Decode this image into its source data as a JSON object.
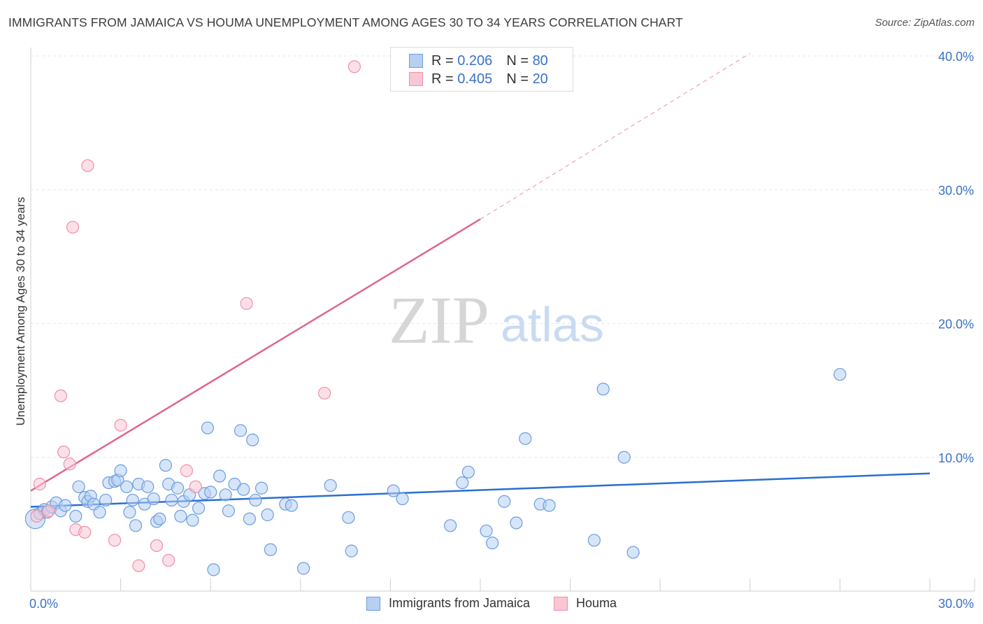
{
  "title": "IMMIGRANTS FROM JAMAICA VS HOUMA UNEMPLOYMENT AMONG AGES 30 TO 34 YEARS CORRELATION CHART",
  "source": "Source: ZipAtlas.com",
  "watermark": {
    "zip": "ZIP",
    "atlas": "atlas"
  },
  "colors": {
    "blue_fill": "#b7d0f2",
    "blue_stroke": "#6b9de0",
    "blue_line": "#2a6fd0",
    "pink_fill": "#f9c6d4",
    "pink_stroke": "#ee8faa",
    "pink_line": "#e0658e",
    "axis_text": "#3a72c4",
    "grid": "#e6e6e6"
  },
  "legend": [
    {
      "r_label": "R =",
      "r_value": "0.206",
      "n_label": "N =",
      "n_value": "80"
    },
    {
      "r_label": "R =",
      "r_value": "0.405",
      "n_label": "N =",
      "n_value": "20"
    }
  ],
  "chart_data": {
    "type": "scatter",
    "xlabel": "",
    "ylabel": "Unemployment Among Ages 30 to 34 years",
    "xlim": [
      0,
      30
    ],
    "ylim": [
      0,
      40
    ],
    "x_tick_labels": [
      "0.0%",
      "30.0%"
    ],
    "y_tick_labels": [
      "10.0%",
      "20.0%",
      "30.0%",
      "40.0%"
    ],
    "y_ticks": [
      10,
      20,
      30,
      40
    ],
    "legend_position": "top-center",
    "series": [
      {
        "name": "Immigrants from Jamaica",
        "r": 0.206,
        "n": 80,
        "trend": {
          "x": [
            0,
            30
          ],
          "y": [
            6.3,
            8.8
          ],
          "dashed_extension": false
        },
        "points": [
          [
            0.15,
            5.4
          ],
          [
            0.3,
            5.8
          ],
          [
            0.45,
            6.1
          ],
          [
            0.55,
            5.9
          ],
          [
            0.7,
            6.3
          ],
          [
            0.85,
            6.6
          ],
          [
            1.0,
            6.0
          ],
          [
            1.15,
            6.4
          ],
          [
            1.5,
            5.6
          ],
          [
            1.6,
            7.8
          ],
          [
            1.8,
            7.0
          ],
          [
            1.9,
            6.7
          ],
          [
            2.0,
            7.1
          ],
          [
            2.1,
            6.5
          ],
          [
            2.3,
            5.9
          ],
          [
            2.5,
            6.8
          ],
          [
            2.6,
            8.1
          ],
          [
            2.8,
            8.2
          ],
          [
            2.9,
            8.3
          ],
          [
            3.0,
            9.0
          ],
          [
            3.2,
            7.8
          ],
          [
            3.3,
            5.9
          ],
          [
            3.4,
            6.8
          ],
          [
            3.5,
            4.9
          ],
          [
            3.6,
            8.0
          ],
          [
            3.8,
            6.5
          ],
          [
            3.9,
            7.8
          ],
          [
            4.1,
            6.9
          ],
          [
            4.2,
            5.2
          ],
          [
            4.3,
            5.4
          ],
          [
            4.5,
            9.4
          ],
          [
            4.6,
            8.0
          ],
          [
            4.7,
            6.8
          ],
          [
            4.9,
            7.7
          ],
          [
            5.0,
            5.6
          ],
          [
            5.1,
            6.7
          ],
          [
            5.3,
            7.2
          ],
          [
            5.4,
            5.3
          ],
          [
            5.6,
            6.2
          ],
          [
            5.8,
            7.3
          ],
          [
            5.9,
            12.2
          ],
          [
            6.0,
            7.4
          ],
          [
            6.1,
            1.6
          ],
          [
            6.3,
            8.6
          ],
          [
            6.5,
            7.2
          ],
          [
            6.6,
            6.0
          ],
          [
            6.8,
            8.0
          ],
          [
            7.0,
            12.0
          ],
          [
            7.1,
            7.6
          ],
          [
            7.3,
            5.4
          ],
          [
            7.4,
            11.3
          ],
          [
            7.5,
            6.8
          ],
          [
            7.7,
            7.7
          ],
          [
            7.9,
            5.7
          ],
          [
            8.0,
            3.1
          ],
          [
            8.5,
            6.5
          ],
          [
            8.7,
            6.4
          ],
          [
            9.1,
            1.7
          ],
          [
            10.0,
            7.9
          ],
          [
            10.6,
            5.5
          ],
          [
            10.7,
            3.0
          ],
          [
            12.1,
            7.5
          ],
          [
            12.4,
            6.9
          ],
          [
            14.0,
            4.9
          ],
          [
            14.4,
            8.1
          ],
          [
            14.6,
            8.9
          ],
          [
            15.2,
            4.5
          ],
          [
            15.4,
            3.6
          ],
          [
            15.8,
            6.7
          ],
          [
            16.2,
            5.1
          ],
          [
            16.5,
            11.4
          ],
          [
            17.0,
            6.5
          ],
          [
            17.3,
            6.4
          ],
          [
            18.8,
            3.8
          ],
          [
            19.1,
            15.1
          ],
          [
            19.8,
            10.0
          ],
          [
            20.1,
            2.9
          ],
          [
            27.0,
            16.2
          ]
        ]
      },
      {
        "name": "Houma",
        "r": 0.405,
        "n": 20,
        "trend": {
          "x": [
            0,
            15
          ],
          "y": [
            7.5,
            27.8
          ],
          "dashed_to": [
            24.0,
            40.2
          ]
        },
        "points": [
          [
            0.2,
            5.6
          ],
          [
            0.3,
            8.0
          ],
          [
            0.6,
            6.0
          ],
          [
            1.0,
            14.6
          ],
          [
            1.1,
            10.4
          ],
          [
            1.3,
            9.5
          ],
          [
            1.4,
            27.2
          ],
          [
            1.5,
            4.6
          ],
          [
            1.8,
            4.4
          ],
          [
            1.9,
            31.8
          ],
          [
            2.8,
            3.8
          ],
          [
            3.0,
            12.4
          ],
          [
            3.6,
            1.9
          ],
          [
            4.2,
            3.4
          ],
          [
            4.6,
            2.3
          ],
          [
            5.2,
            9.0
          ],
          [
            5.5,
            7.8
          ],
          [
            7.2,
            21.5
          ],
          [
            9.8,
            14.8
          ],
          [
            10.8,
            39.2
          ]
        ]
      }
    ]
  }
}
